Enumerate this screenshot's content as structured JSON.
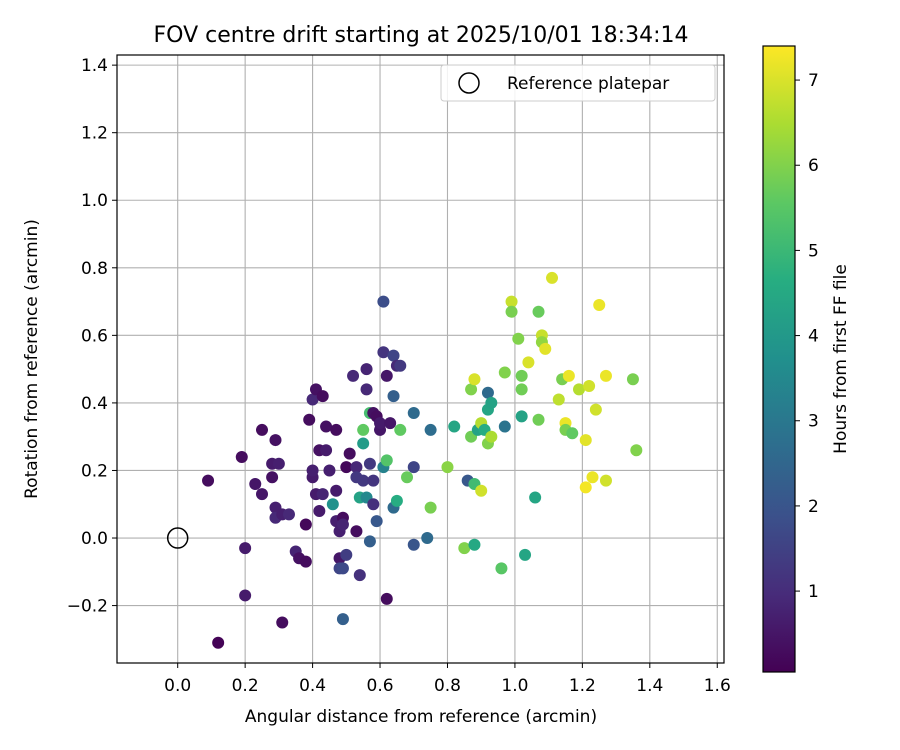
{
  "chart_data": {
    "type": "scatter",
    "title": "FOV centre drift starting at 2025/10/01 18:34:14",
    "xlabel": "Angular distance from reference (arcmin)",
    "ylabel": "Rotation from reference (arcmin)",
    "xlim": [
      -0.18,
      1.62
    ],
    "ylim": [
      -0.37,
      1.43
    ],
    "xticks": [
      "0.0",
      "0.2",
      "0.4",
      "0.6",
      "0.8",
      "1.0",
      "1.2",
      "1.4",
      "1.6"
    ],
    "xtick_values": [
      0.0,
      0.2,
      0.4,
      0.6,
      0.8,
      1.0,
      1.2,
      1.4,
      1.6
    ],
    "yticks": [
      "−0.2",
      "0.0",
      "0.2",
      "0.4",
      "0.6",
      "0.8",
      "1.0",
      "1.2",
      "1.4"
    ],
    "ytick_values": [
      -0.2,
      0.0,
      0.2,
      0.4,
      0.6,
      0.8,
      1.0,
      1.2,
      1.4
    ],
    "grid": true,
    "legend": {
      "position": "top-right",
      "label": "Reference platepar",
      "marker": "open-circle"
    },
    "reference_point": {
      "x": 0.0,
      "y": 0.0
    },
    "colorbar": {
      "label": "Hours from first FF file",
      "range": [
        0.05,
        7.4
      ],
      "ticks": [
        "1",
        "2",
        "3",
        "4",
        "5",
        "6",
        "7"
      ],
      "tick_values": [
        1,
        2,
        3,
        4,
        5,
        6,
        7
      ],
      "colormap": "viridis"
    },
    "points": [
      {
        "x": 0.12,
        "y": -0.31,
        "h": 0.1
      },
      {
        "x": 0.09,
        "y": 0.17,
        "h": 0.3
      },
      {
        "x": 0.19,
        "y": 0.24,
        "h": 0.3
      },
      {
        "x": 0.2,
        "y": -0.03,
        "h": 0.6
      },
      {
        "x": 0.2,
        "y": -0.17,
        "h": 0.6
      },
      {
        "x": 0.23,
        "y": 0.16,
        "h": 0.5
      },
      {
        "x": 0.25,
        "y": 0.13,
        "h": 0.5
      },
      {
        "x": 0.25,
        "y": 0.32,
        "h": 0.3
      },
      {
        "x": 0.28,
        "y": 0.18,
        "h": 0.4
      },
      {
        "x": 0.28,
        "y": 0.22,
        "h": 0.6
      },
      {
        "x": 0.29,
        "y": 0.29,
        "h": 0.4
      },
      {
        "x": 0.29,
        "y": 0.09,
        "h": 0.7
      },
      {
        "x": 0.3,
        "y": 0.22,
        "h": 0.7
      },
      {
        "x": 0.29,
        "y": 0.06,
        "h": 0.9
      },
      {
        "x": 0.31,
        "y": -0.25,
        "h": 0.3
      },
      {
        "x": 0.31,
        "y": 0.07,
        "h": 0.7
      },
      {
        "x": 0.33,
        "y": 0.07,
        "h": 0.9
      },
      {
        "x": 0.35,
        "y": -0.04,
        "h": 0.8
      },
      {
        "x": 0.36,
        "y": -0.06,
        "h": 0.4
      },
      {
        "x": 0.38,
        "y": -0.07,
        "h": 0.3
      },
      {
        "x": 0.38,
        "y": 0.04,
        "h": 0.2
      },
      {
        "x": 0.39,
        "y": 0.35,
        "h": 0.3
      },
      {
        "x": 0.4,
        "y": 0.41,
        "h": 0.9
      },
      {
        "x": 0.4,
        "y": 0.18,
        "h": 0.6
      },
      {
        "x": 0.4,
        "y": 0.2,
        "h": 0.7
      },
      {
        "x": 0.41,
        "y": 0.44,
        "h": 0.4
      },
      {
        "x": 0.41,
        "y": 0.13,
        "h": 0.6
      },
      {
        "x": 0.42,
        "y": 0.08,
        "h": 0.6
      },
      {
        "x": 0.42,
        "y": 0.26,
        "h": 0.4
      },
      {
        "x": 0.43,
        "y": 0.42,
        "h": 0.3
      },
      {
        "x": 0.43,
        "y": 0.13,
        "h": 0.8
      },
      {
        "x": 0.44,
        "y": 0.26,
        "h": 0.6
      },
      {
        "x": 0.44,
        "y": 0.33,
        "h": 0.4
      },
      {
        "x": 0.45,
        "y": 0.2,
        "h": 0.7
      },
      {
        "x": 0.46,
        "y": 0.1,
        "h": 3.8
      },
      {
        "x": 0.47,
        "y": 0.05,
        "h": 0.7
      },
      {
        "x": 0.47,
        "y": 0.14,
        "h": 0.6
      },
      {
        "x": 0.47,
        "y": 0.32,
        "h": 0.3
      },
      {
        "x": 0.48,
        "y": -0.06,
        "h": 0.5
      },
      {
        "x": 0.48,
        "y": -0.09,
        "h": 1.6
      },
      {
        "x": 0.48,
        "y": 0.02,
        "h": 0.7
      },
      {
        "x": 0.49,
        "y": -0.09,
        "h": 1.7
      },
      {
        "x": 0.49,
        "y": 0.06,
        "h": 0.3
      },
      {
        "x": 0.49,
        "y": 0.04,
        "h": 0.8
      },
      {
        "x": 0.49,
        "y": -0.24,
        "h": 2.3
      },
      {
        "x": 0.5,
        "y": -0.05,
        "h": 1.4
      },
      {
        "x": 0.5,
        "y": 0.21,
        "h": 0.2
      },
      {
        "x": 0.51,
        "y": 0.25,
        "h": 0.3
      },
      {
        "x": 0.52,
        "y": 0.48,
        "h": 0.9
      },
      {
        "x": 0.53,
        "y": 0.21,
        "h": 0.9
      },
      {
        "x": 0.53,
        "y": 0.02,
        "h": 0.3
      },
      {
        "x": 0.53,
        "y": 0.18,
        "h": 1.3
      },
      {
        "x": 0.54,
        "y": -0.11,
        "h": 1.1
      },
      {
        "x": 0.54,
        "y": 0.12,
        "h": 4.3
      },
      {
        "x": 0.55,
        "y": 0.17,
        "h": 1.3
      },
      {
        "x": 0.55,
        "y": 0.28,
        "h": 4.1
      },
      {
        "x": 0.55,
        "y": 0.32,
        "h": 5.6
      },
      {
        "x": 0.56,
        "y": 0.5,
        "h": 0.8
      },
      {
        "x": 0.56,
        "y": 0.44,
        "h": 0.9
      },
      {
        "x": 0.56,
        "y": 0.12,
        "h": 3.5
      },
      {
        "x": 0.57,
        "y": 0.22,
        "h": 1.3
      },
      {
        "x": 0.57,
        "y": -0.01,
        "h": 2.3
      },
      {
        "x": 0.57,
        "y": 0.37,
        "h": 5.2
      },
      {
        "x": 0.58,
        "y": 0.1,
        "h": 1.1
      },
      {
        "x": 0.58,
        "y": 0.17,
        "h": 1.2
      },
      {
        "x": 0.58,
        "y": 0.37,
        "h": 0.4
      },
      {
        "x": 0.59,
        "y": 0.05,
        "h": 2.1
      },
      {
        "x": 0.59,
        "y": 0.36,
        "h": 0.3
      },
      {
        "x": 0.6,
        "y": 0.32,
        "h": 0.5
      },
      {
        "x": 0.6,
        "y": 0.34,
        "h": 0.6
      },
      {
        "x": 0.61,
        "y": 0.7,
        "h": 1.8
      },
      {
        "x": 0.61,
        "y": 0.55,
        "h": 1.2
      },
      {
        "x": 0.61,
        "y": 0.21,
        "h": 3.3
      },
      {
        "x": 0.62,
        "y": 0.48,
        "h": 0.5
      },
      {
        "x": 0.62,
        "y": 0.23,
        "h": 5.4
      },
      {
        "x": 0.62,
        "y": -0.18,
        "h": 0.3
      },
      {
        "x": 0.63,
        "y": 0.34,
        "h": 0.5
      },
      {
        "x": 0.64,
        "y": 0.54,
        "h": 1.6
      },
      {
        "x": 0.64,
        "y": 0.42,
        "h": 2.3
      },
      {
        "x": 0.64,
        "y": 0.09,
        "h": 2.6
      },
      {
        "x": 0.65,
        "y": 0.51,
        "h": 0.9
      },
      {
        "x": 0.65,
        "y": 0.11,
        "h": 4.6
      },
      {
        "x": 0.66,
        "y": 0.51,
        "h": 1.3
      },
      {
        "x": 0.66,
        "y": 0.32,
        "h": 5.6
      },
      {
        "x": 0.68,
        "y": 0.18,
        "h": 5.7
      },
      {
        "x": 0.7,
        "y": 0.37,
        "h": 2.6
      },
      {
        "x": 0.7,
        "y": 0.21,
        "h": 1.6
      },
      {
        "x": 0.7,
        "y": -0.02,
        "h": 2.0
      },
      {
        "x": 0.74,
        "y": 0.0,
        "h": 2.6
      },
      {
        "x": 0.75,
        "y": 0.32,
        "h": 2.7
      },
      {
        "x": 0.75,
        "y": 0.09,
        "h": 5.9
      },
      {
        "x": 0.8,
        "y": 0.21,
        "h": 6.1
      },
      {
        "x": 0.82,
        "y": 0.33,
        "h": 4.4
      },
      {
        "x": 0.85,
        "y": -0.03,
        "h": 6.0
      },
      {
        "x": 0.86,
        "y": 0.17,
        "h": 2.1
      },
      {
        "x": 0.87,
        "y": 0.3,
        "h": 5.8
      },
      {
        "x": 0.87,
        "y": 0.44,
        "h": 6.0
      },
      {
        "x": 0.88,
        "y": 0.47,
        "h": 7.0
      },
      {
        "x": 0.88,
        "y": -0.02,
        "h": 4.5
      },
      {
        "x": 0.88,
        "y": 0.16,
        "h": 5.1
      },
      {
        "x": 0.89,
        "y": 0.32,
        "h": 4.3
      },
      {
        "x": 0.9,
        "y": 0.34,
        "h": 6.6
      },
      {
        "x": 0.9,
        "y": 0.14,
        "h": 6.9
      },
      {
        "x": 0.91,
        "y": 0.32,
        "h": 4.6
      },
      {
        "x": 0.92,
        "y": 0.43,
        "h": 2.6
      },
      {
        "x": 0.92,
        "y": 0.28,
        "h": 6.0
      },
      {
        "x": 0.92,
        "y": 0.38,
        "h": 4.4
      },
      {
        "x": 0.93,
        "y": 0.3,
        "h": 6.5
      },
      {
        "x": 0.93,
        "y": 0.4,
        "h": 4.3
      },
      {
        "x": 0.96,
        "y": -0.09,
        "h": 5.5
      },
      {
        "x": 0.97,
        "y": 0.33,
        "h": 2.9
      },
      {
        "x": 0.97,
        "y": 0.49,
        "h": 6.0
      },
      {
        "x": 0.99,
        "y": 0.7,
        "h": 6.8
      },
      {
        "x": 0.99,
        "y": 0.67,
        "h": 5.9
      },
      {
        "x": 1.01,
        "y": 0.59,
        "h": 6.0
      },
      {
        "x": 1.02,
        "y": 0.48,
        "h": 5.8
      },
      {
        "x": 1.02,
        "y": 0.44,
        "h": 5.8
      },
      {
        "x": 1.02,
        "y": 0.36,
        "h": 4.3
      },
      {
        "x": 1.03,
        "y": -0.05,
        "h": 4.4
      },
      {
        "x": 1.04,
        "y": 0.52,
        "h": 7.0
      },
      {
        "x": 1.06,
        "y": 0.12,
        "h": 4.4
      },
      {
        "x": 1.07,
        "y": 0.67,
        "h": 5.7
      },
      {
        "x": 1.07,
        "y": 0.35,
        "h": 5.8
      },
      {
        "x": 1.08,
        "y": 0.6,
        "h": 6.8
      },
      {
        "x": 1.08,
        "y": 0.58,
        "h": 6.2
      },
      {
        "x": 1.09,
        "y": 0.56,
        "h": 7.1
      },
      {
        "x": 1.11,
        "y": 0.77,
        "h": 7.0
      },
      {
        "x": 1.13,
        "y": 0.41,
        "h": 6.7
      },
      {
        "x": 1.14,
        "y": 0.47,
        "h": 5.9
      },
      {
        "x": 1.15,
        "y": 0.34,
        "h": 7.2
      },
      {
        "x": 1.15,
        "y": 0.32,
        "h": 5.9
      },
      {
        "x": 1.16,
        "y": 0.48,
        "h": 7.2
      },
      {
        "x": 1.17,
        "y": 0.31,
        "h": 5.6
      },
      {
        "x": 1.19,
        "y": 0.44,
        "h": 6.6
      },
      {
        "x": 1.21,
        "y": 0.29,
        "h": 7.1
      },
      {
        "x": 1.21,
        "y": 0.15,
        "h": 7.3
      },
      {
        "x": 1.22,
        "y": 0.45,
        "h": 6.9
      },
      {
        "x": 1.23,
        "y": 0.18,
        "h": 7.2
      },
      {
        "x": 1.24,
        "y": 0.38,
        "h": 6.9
      },
      {
        "x": 1.25,
        "y": 0.69,
        "h": 7.2
      },
      {
        "x": 1.27,
        "y": 0.48,
        "h": 7.2
      },
      {
        "x": 1.27,
        "y": 0.17,
        "h": 6.9
      },
      {
        "x": 1.35,
        "y": 0.47,
        "h": 5.9
      },
      {
        "x": 1.36,
        "y": 0.26,
        "h": 6.0
      }
    ]
  }
}
